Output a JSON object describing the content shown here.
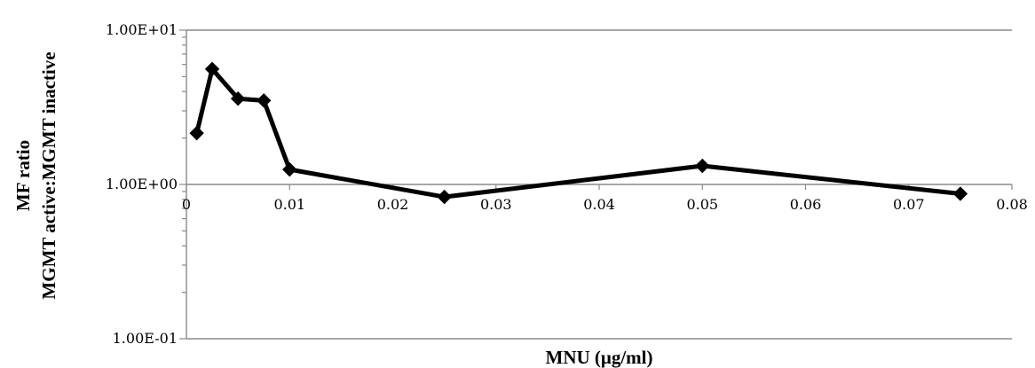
{
  "chart_data": {
    "type": "line",
    "title": "",
    "xlabel": "MNU (μg/ml)",
    "ylabel_lines": [
      "MF ratio",
      "MGMT active:MGMT inactive"
    ],
    "xlim": [
      0,
      0.08
    ],
    "ylim": [
      0.1,
      10
    ],
    "yscale": "log",
    "grid": {
      "horizontal": true,
      "vertical": false
    },
    "legend": "none",
    "x_ticks": [
      "0",
      "0.01",
      "0.02",
      "0.03",
      "0.04",
      "0.05",
      "0.06",
      "0.07",
      "0.08"
    ],
    "y_ticks": [
      "1.00E+01",
      "1.00E+00",
      "1.00E-01"
    ],
    "series": [
      {
        "color": "#000000",
        "marker": "diamond",
        "x": [
          0.001,
          0.0025,
          0.005,
          0.0075,
          0.01,
          0.025,
          0.05,
          0.075
        ],
        "y": [
          2.15,
          5.6,
          3.6,
          3.5,
          1.25,
          0.83,
          1.32,
          0.87
        ]
      }
    ]
  }
}
